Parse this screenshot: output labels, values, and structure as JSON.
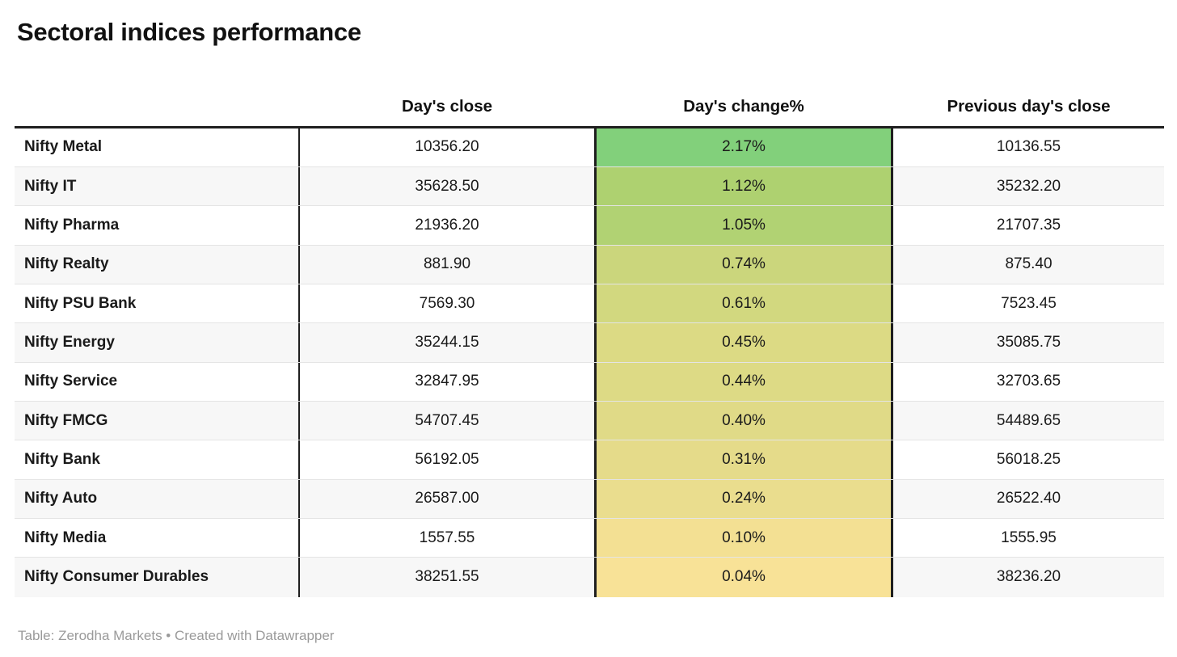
{
  "title": "Sectoral indices performance",
  "columns": {
    "label": "",
    "close": "Day's close",
    "change": "Day's change%",
    "prev": "Previous day's close"
  },
  "rows": [
    {
      "label": "Nifty Metal",
      "close": "10356.20",
      "change": "2.17%",
      "prev": "10136.55",
      "color": "#82d07b"
    },
    {
      "label": "Nifty IT",
      "close": "35628.50",
      "change": "1.12%",
      "prev": "35232.20",
      "color": "#aed170"
    },
    {
      "label": "Nifty Pharma",
      "close": "21936.20",
      "change": "1.05%",
      "prev": "21707.35",
      "color": "#b1d273"
    },
    {
      "label": "Nifty Realty",
      "close": "881.90",
      "change": "0.74%",
      "prev": "875.40",
      "color": "#cbd67c"
    },
    {
      "label": "Nifty PSU Bank",
      "close": "7569.30",
      "change": "0.61%",
      "prev": "7523.45",
      "color": "#d2d87f"
    },
    {
      "label": "Nifty Energy",
      "close": "35244.15",
      "change": "0.45%",
      "prev": "35085.75",
      "color": "#dcda84"
    },
    {
      "label": "Nifty Service",
      "close": "32847.95",
      "change": "0.44%",
      "prev": "32703.65",
      "color": "#ddda85"
    },
    {
      "label": "Nifty FMCG",
      "close": "54707.45",
      "change": "0.40%",
      "prev": "54489.65",
      "color": "#e0da87"
    },
    {
      "label": "Nifty Bank",
      "close": "56192.05",
      "change": "0.31%",
      "prev": "56018.25",
      "color": "#e5db8a"
    },
    {
      "label": "Nifty Auto",
      "close": "26587.00",
      "change": "0.24%",
      "prev": "26522.40",
      "color": "#eadd8e"
    },
    {
      "label": "Nifty Media",
      "close": "1557.55",
      "change": "0.10%",
      "prev": "1555.95",
      "color": "#f3e093"
    },
    {
      "label": "Nifty Consumer Durables",
      "close": "38251.55",
      "change": "0.04%",
      "prev": "38236.20",
      "color": "#f8e297"
    }
  ],
  "footer": "Table: Zerodha Markets • Created with Datawrapper",
  "style_colors": {
    "heatmap_high": "#82d07b",
    "heatmap_low": "#f8e297",
    "rule_black": "#1f1f1f",
    "row_stripe": "#f7f7f7",
    "footer_gray": "#9a9a9a"
  },
  "chart_data": {
    "type": "table",
    "title": "Sectoral indices performance",
    "column_headers": [
      "",
      "Day's close",
      "Day's change%",
      "Previous day's close"
    ],
    "row_labels": [
      "Nifty Metal",
      "Nifty IT",
      "Nifty Pharma",
      "Nifty Realty",
      "Nifty PSU Bank",
      "Nifty Energy",
      "Nifty Service",
      "Nifty FMCG",
      "Nifty Bank",
      "Nifty Auto",
      "Nifty Media",
      "Nifty Consumer Durables"
    ],
    "days_close": [
      10356.2,
      35628.5,
      21936.2,
      881.9,
      7569.3,
      35244.15,
      32847.95,
      54707.45,
      56192.05,
      26587.0,
      1557.55,
      38251.55
    ],
    "days_change_pct": [
      2.17,
      1.12,
      1.05,
      0.74,
      0.61,
      0.45,
      0.44,
      0.4,
      0.31,
      0.24,
      0.1,
      0.04
    ],
    "previous_days_close": [
      10136.55,
      35232.2,
      21707.35,
      875.4,
      7523.45,
      35085.75,
      32703.65,
      54489.65,
      56018.25,
      26522.4,
      1555.95,
      38236.2
    ],
    "heatmap_column": "Day's change%",
    "heatmap_scale": "green (high) to yellow (low)",
    "footer": "Table: Zerodha Markets • Created with Datawrapper"
  }
}
